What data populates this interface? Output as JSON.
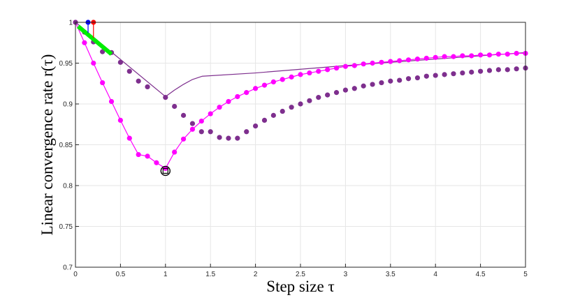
{
  "chart_data": {
    "type": "scatter",
    "title": "",
    "xlabel": "Step size τ",
    "ylabel": "Linear convergence rate r(τ)",
    "xlim": [
      0,
      5
    ],
    "ylim": [
      0.7,
      1
    ],
    "grid": true,
    "x_ticks": [
      {
        "value": 0,
        "label": "0"
      },
      {
        "value": 0.5,
        "label": "0.5"
      },
      {
        "value": 1,
        "label": "1"
      },
      {
        "value": 1.5,
        "label": "1.5"
      },
      {
        "value": 2,
        "label": "2"
      },
      {
        "value": 2.5,
        "label": "2.5"
      },
      {
        "value": 3,
        "label": "3"
      },
      {
        "value": 3.5,
        "label": "3.5"
      },
      {
        "value": 4,
        "label": "4"
      },
      {
        "value": 4.5,
        "label": "4.5"
      },
      {
        "value": 5,
        "label": "5"
      }
    ],
    "y_ticks": [
      {
        "value": 0.7,
        "label": "0.7"
      },
      {
        "value": 0.75,
        "label": "0.75"
      },
      {
        "value": 0.8,
        "label": "0.8"
      },
      {
        "value": 0.85,
        "label": "0.85"
      },
      {
        "value": 0.9,
        "label": "0.9"
      },
      {
        "value": 0.95,
        "label": "0.95"
      },
      {
        "value": 1,
        "label": "1"
      }
    ],
    "series": [
      {
        "kind": "line",
        "color": "#7e2f8e",
        "width": 1.2,
        "x": [
          0,
          1,
          1.1,
          1.2,
          1.3,
          1.41,
          2,
          3,
          4,
          5
        ],
        "y": [
          1,
          0.909,
          0.917,
          0.924,
          0.93,
          0.934,
          0.938,
          0.947,
          0.955,
          0.963
        ]
      },
      {
        "kind": "line-markers",
        "color": "#ff00ff",
        "width": 1.2,
        "marker_radius": 3.6,
        "x": [
          0,
          0.1,
          0.2,
          0.3,
          0.4,
          0.5,
          0.6,
          0.7,
          0.8,
          0.9,
          1,
          1.1,
          1.2,
          1.3,
          1.4,
          1.5,
          1.6,
          1.7,
          1.8,
          1.9,
          2,
          2.1,
          2.2,
          2.3,
          2.4,
          2.5,
          2.6,
          2.7,
          2.8,
          2.9,
          3,
          3.1,
          3.2,
          3.3,
          3.4,
          3.5,
          3.6,
          3.7,
          3.8,
          3.9,
          4,
          4.1,
          4.2,
          4.3,
          4.4,
          4.5,
          4.6,
          4.7,
          4.8,
          4.9,
          5
        ],
        "y": [
          1,
          0.975,
          0.95,
          0.926,
          0.903,
          0.88,
          0.858,
          0.838,
          0.836,
          0.828,
          0.821,
          0.841,
          0.857,
          0.869,
          0.879,
          0.888,
          0.896,
          0.903,
          0.909,
          0.914,
          0.919,
          0.923,
          0.927,
          0.93,
          0.933,
          0.936,
          0.938,
          0.94,
          0.942,
          0.944,
          0.946,
          0.947,
          0.949,
          0.95,
          0.951,
          0.952,
          0.953,
          0.954,
          0.955,
          0.956,
          0.957,
          0.958,
          0.958,
          0.959,
          0.959,
          0.96,
          0.96,
          0.961,
          0.961,
          0.962,
          0.962
        ]
      },
      {
        "kind": "markers",
        "color": "#7e2f8e",
        "marker_radius": 3.6,
        "x": [
          0,
          0.1,
          0.2,
          0.3,
          0.4,
          0.5,
          0.6,
          0.7,
          0.8,
          1,
          1.1,
          1.2,
          1.3,
          1.4,
          1.5,
          1.6,
          1.7,
          1.8,
          1.9,
          2,
          2.1,
          2.2,
          2.3,
          2.4,
          2.5,
          2.6,
          2.7,
          2.8,
          2.9,
          3,
          3.1,
          3.2,
          3.3,
          3.4,
          3.5,
          3.6,
          3.7,
          3.8,
          3.9,
          4,
          4.1,
          4.2,
          4.3,
          4.4,
          4.5,
          4.6,
          4.7,
          4.8,
          4.9,
          5
        ],
        "y": [
          1,
          0.988,
          0.976,
          0.964,
          0.963,
          0.951,
          0.94,
          0.928,
          0.921,
          0.908,
          0.897,
          0.886,
          0.876,
          0.866,
          0.866,
          0.859,
          0.858,
          0.858,
          0.866,
          0.873,
          0.88,
          0.886,
          0.891,
          0.896,
          0.9,
          0.904,
          0.908,
          0.911,
          0.914,
          0.917,
          0.919,
          0.922,
          0.924,
          0.926,
          0.928,
          0.929,
          0.931,
          0.932,
          0.934,
          0.935,
          0.936,
          0.937,
          0.938,
          0.939,
          0.94,
          0.941,
          0.942,
          0.942,
          0.943,
          0.944
        ]
      },
      {
        "kind": "thick-line",
        "color": "#00ee00",
        "width": 6,
        "x": [
          0.03,
          0.4
        ],
        "y": [
          0.995,
          0.961
        ]
      }
    ],
    "annotations": [
      {
        "kind": "stem",
        "color": "#0000ff",
        "x": 0.14,
        "y_top": 1.0,
        "y_bottom": 0.987
      },
      {
        "kind": "stem",
        "color": "#ff0000",
        "x": 0.2,
        "y_top": 1.0,
        "y_bottom": 0.981
      },
      {
        "kind": "circle",
        "color": "#000000",
        "x": 1,
        "y": 0.818
      },
      {
        "kind": "square",
        "color": "#000000",
        "x": 1,
        "y": 0.818
      }
    ]
  }
}
